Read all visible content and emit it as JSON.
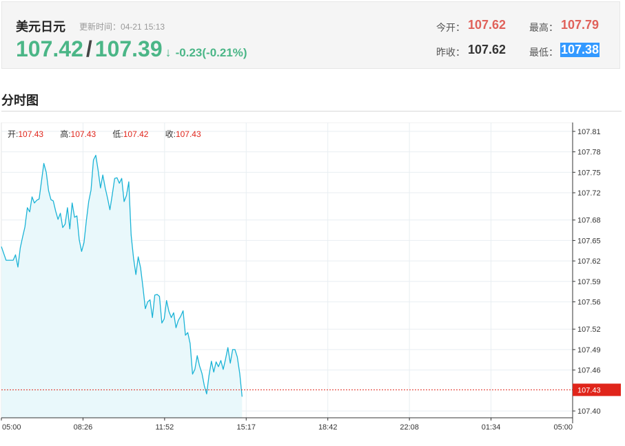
{
  "header": {
    "title": "美元日元",
    "update_label": "更新时间：",
    "update_time": "04-21 15:13",
    "bid": "107.42",
    "slash": "/",
    "ask": "107.39",
    "arrow": "↓",
    "change": "-0.23(-0.21%)",
    "open_label": "今开：",
    "open_value": "107.62",
    "high_label": "最高：",
    "high_value": "107.79",
    "prev_close_label": "昨收：",
    "prev_close_value": "107.62",
    "low_label": "最低：",
    "low_value": "107.38"
  },
  "section": {
    "title": "分时图"
  },
  "colors": {
    "line": "#1ab3d6",
    "fill": "#e9f8fb",
    "grid": "#e8eef2",
    "up": "#e0615a",
    "down": "#4bb687",
    "current_tag": "#e0251b"
  },
  "chart_data": {
    "type": "line",
    "ohlc_info": [
      {
        "label": "开:",
        "value": "107.43"
      },
      {
        "label": "高:",
        "value": "107.43"
      },
      {
        "label": "低:",
        "value": "107.42"
      },
      {
        "label": "收:",
        "value": "107.43"
      }
    ],
    "x_tick_labels": [
      "05:00",
      "08:26",
      "11:52",
      "15:17",
      "18:42",
      "22:08",
      "01:34",
      "05:00"
    ],
    "y_tick_labels": [
      "107.81",
      "107.78",
      "107.75",
      "107.72",
      "107.68",
      "107.65",
      "107.62",
      "107.59",
      "107.56",
      "107.52",
      "107.49",
      "107.46",
      "107.40"
    ],
    "y_ticks": [
      107.81,
      107.78,
      107.75,
      107.72,
      107.68,
      107.65,
      107.62,
      107.59,
      107.56,
      107.52,
      107.49,
      107.46,
      107.4
    ],
    "ylim": [
      107.39,
      107.823
    ],
    "current_price": "107.43",
    "current_value": 107.431,
    "series": [
      {
        "values": [
          107.641,
          107.631,
          107.621,
          107.621,
          107.621,
          107.621,
          107.629,
          107.611,
          107.639,
          107.655,
          107.67,
          107.698,
          107.692,
          107.714,
          107.705,
          107.709,
          107.711,
          107.737,
          107.763,
          107.75,
          107.723,
          107.71,
          107.708,
          107.693,
          107.681,
          107.69,
          107.669,
          107.674,
          107.698,
          107.667,
          107.705,
          107.684,
          107.686,
          107.651,
          107.634,
          107.647,
          107.679,
          107.707,
          107.724,
          107.768,
          107.775,
          107.753,
          107.727,
          107.746,
          107.727,
          107.712,
          107.695,
          107.717,
          107.741,
          107.742,
          107.734,
          107.741,
          107.707,
          107.716,
          107.736,
          107.658,
          107.624,
          107.6,
          107.626,
          107.61,
          107.581,
          107.55,
          107.56,
          107.563,
          107.537,
          107.57,
          107.571,
          107.568,
          107.529,
          107.535,
          107.562,
          107.546,
          107.537,
          107.544,
          107.522,
          107.533,
          107.539,
          107.547,
          107.511,
          107.515,
          107.499,
          107.454,
          107.461,
          107.481,
          107.466,
          107.455,
          107.437,
          107.425,
          107.452,
          107.473,
          107.457,
          107.472,
          107.465,
          107.474,
          107.461,
          107.476,
          107.493,
          107.47,
          107.49,
          107.49,
          107.479,
          107.455,
          107.421
        ]
      }
    ]
  }
}
